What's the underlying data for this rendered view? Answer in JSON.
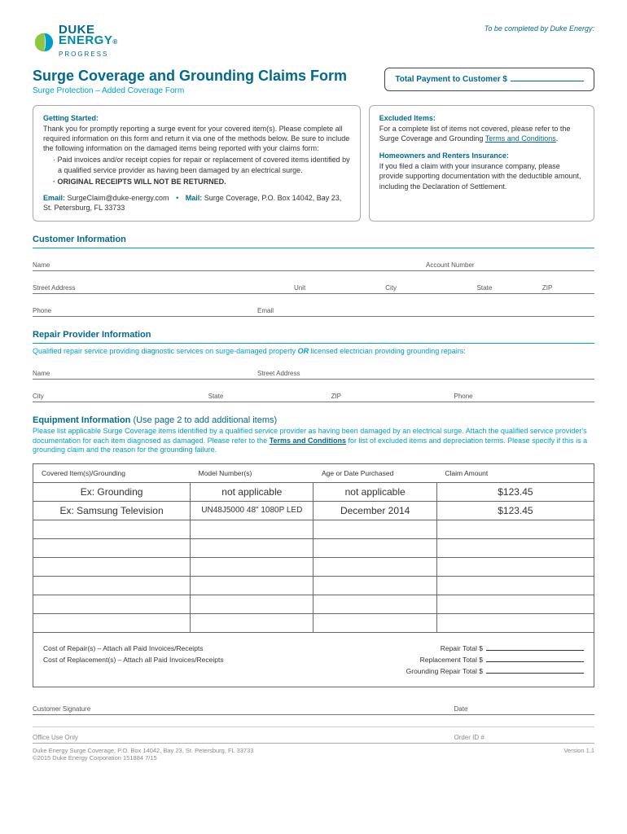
{
  "brand": {
    "line1": "DUKE",
    "line2": "ENERGY",
    "reg": "®",
    "line3": "PROGRESS"
  },
  "to_be": "To be completed by Duke Energy:",
  "title": "Surge Coverage and Grounding Claims Form",
  "subtitle": "Surge Protection – Added Coverage Form",
  "payment_label": "Total Payment to Customer $",
  "getting": {
    "heading": "Getting Started:",
    "p1": "Thank you for promptly reporting a surge event for your covered item(s). Please complete all required information on this form and return it via one of the methods below. Be sure to include the following information on the damaged items being reported with your claims form:",
    "b1": "Paid invoices and/or receipt copies for repair or replacement of covered items identified by a qualified service provider as having been damaged by an electrical surge.",
    "b2": "ORIGINAL RECEIPTS WILL NOT BE RETURNED.",
    "email_label": "Email:",
    "email": "SurgeClaim@duke-energy.com",
    "mail_label": "Mail:",
    "mail": "Surge Coverage, P.O. Box 14042, Bay 23, St. Petersburg, FL 33733"
  },
  "excluded": {
    "heading": "Excluded Items:",
    "p1": "For a complete list of items not covered, please refer to the Surge Coverage and Grounding",
    "link": "Terms and Conditions",
    "heading2": "Homeowners and Renters Insurance:",
    "p2": "If you filed a claim with your insurance company, please provide supporting documentation with the deductible amount, including the Declaration of Settlement."
  },
  "cust": {
    "heading": "Customer Information",
    "name": "Name",
    "acct": "Account Number",
    "street": "Street Address",
    "unit": "Unit",
    "city": "City",
    "state": "State",
    "zip": "ZIP",
    "phone": "Phone",
    "email": "Email"
  },
  "repair": {
    "heading": "Repair Provider Information",
    "sub_pre": "Qualified repair service providing diagnostic services on surge-damaged property ",
    "sub_or": "OR",
    "sub_post": " licensed electrician providing grounding repairs:",
    "name": "Name",
    "street": "Street Address",
    "city": "City",
    "state": "State",
    "zip": "ZIP",
    "phone": "Phone"
  },
  "equip": {
    "heading": "Equipment Information ",
    "paren": "(Use page 2 to add additional items)",
    "sub_pre": "Please list applicable Surge Coverage items identified by a qualified service provider as having been damaged by an electrical surge. Attach the qualified service provider's documentation for each item diagnosed as damaged. Please refer to the ",
    "sub_link": "Terms and Conditions",
    "sub_post": " for list of excluded items and depreciation terms. Please specify if this is a grounding claim and the reason for the grounding failure.",
    "headers": [
      "Covered Item(s)/Grounding",
      "Model Number(s)",
      "Age or Date Purchased",
      "Claim Amount"
    ],
    "rows": [
      [
        "Ex: Grounding",
        "not applicable",
        "not applicable",
        "$123.45"
      ],
      [
        "Ex: Samsung Television",
        "UN48J5000 48\" 1080P LED",
        "December 2014",
        "$123.45"
      ]
    ],
    "blank_rows": 6,
    "cost_repair": "Cost of Repair(s) – Attach all Paid Invoices/Receipts",
    "cost_replace": "Cost of Replacement(s) – Attach all Paid Invoices/Receipts",
    "repair_total": "Repair Total   $",
    "replace_total": "Replacement Total   $",
    "ground_total": "Grounding Repair Total   $"
  },
  "sig": {
    "customer": "Customer Signature",
    "date": "Date"
  },
  "office": {
    "use": "Office Use Only",
    "order": "Order ID #"
  },
  "footer": {
    "addr": "Duke Energy Surge Coverage, P.O. Box 14042, Bay 23, St. Petersburg, FL 33733",
    "copy": "©2015 Duke Energy Corporation  151884  7/15",
    "version": "Version 1.1"
  },
  "colors": {
    "primary": "#006a8e",
    "accent": "#00a0c6",
    "text": "#333333"
  }
}
